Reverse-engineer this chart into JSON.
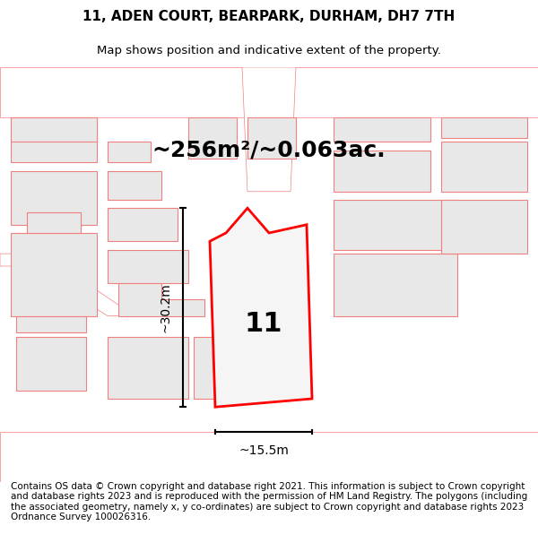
{
  "title_line1": "11, ADEN COURT, BEARPARK, DURHAM, DH7 7TH",
  "title_line2": "Map shows position and indicative extent of the property.",
  "area_text": "~256m²/~0.063ac.",
  "property_number": "11",
  "dim_vertical": "~30.2m",
  "dim_horizontal": "~15.5m",
  "footer_text": "Contains OS data © Crown copyright and database right 2021. This information is subject to Crown copyright and database rights 2023 and is reproduced with the permission of HM Land Registry. The polygons (including the associated geometry, namely x, y co-ordinates) are subject to Crown copyright and database rights 2023 Ordnance Survey 100026316.",
  "bg_color": "#f5f5f5",
  "map_bg": "#f9f9f9",
  "building_fill": "#e8e8e8",
  "building_outline": "#f08080",
  "road_color": "#ffffff",
  "property_fill": "#f5f5f5",
  "property_outline": "#ff0000",
  "title_fontsize": 11,
  "subtitle_fontsize": 9.5,
  "area_fontsize": 18,
  "label_fontsize": 22,
  "dim_fontsize": 10,
  "footer_fontsize": 7.5
}
